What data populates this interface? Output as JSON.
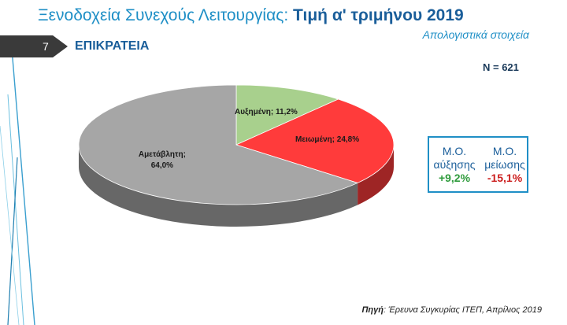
{
  "title_main": "Ξενοδοχεία Συνεχούς Λειτουργίας: ",
  "title_bold": "Τιμή α' τριμήνου 2019",
  "subtitle": "Απολογιστικά στοιχεία",
  "slide_number": "7",
  "section_title": "ΕΠΙΚΡΑΤΕΙΑ",
  "sample_size": "N = 621",
  "summary": {
    "increase_head_1": "Μ.Ο.",
    "increase_head_2": "αύξησης",
    "increase_value": "+9,2%",
    "decrease_head_1": "Μ.Ο.",
    "decrease_head_2": "μείωσης",
    "decrease_value": "-15,1%"
  },
  "source_label": "Πηγή",
  "source_text": ": Έρευνα Συγκυρίας ΙΤΕΠ, Απρίλιος 2019",
  "colors": {
    "increase": "#a8d08d",
    "decrease": "#ff3b3b",
    "unchanged": "#a6a6a6",
    "accent": "#1f8fc6"
  },
  "chart_data": {
    "type": "pie",
    "slices": [
      {
        "label": "Αυξημένη; 11,2%",
        "name": "Αυξημένη",
        "value": 11.2,
        "color": "#a8d08d"
      },
      {
        "label": "Μειωμένη; 24,8%",
        "name": "Μειωμένη",
        "value": 24.8,
        "color": "#ff3b3b"
      },
      {
        "label_line1": "Αμετάβλητη;",
        "label_line2": "64,0%",
        "name": "Αμετάβλητη",
        "value": 64.0,
        "color": "#a6a6a6"
      }
    ]
  }
}
